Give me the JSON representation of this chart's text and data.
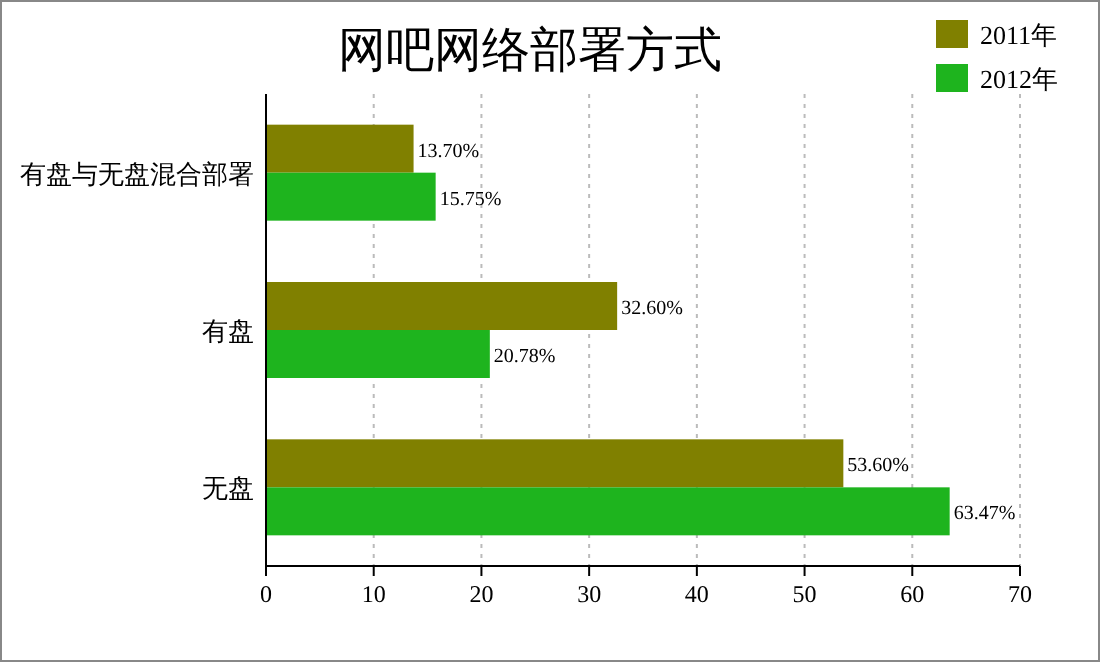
{
  "chart_data": {
    "type": "bar",
    "orientation": "horizontal",
    "title": "网吧网络部署方式",
    "categories": [
      "有盘与无盘混合部署",
      "有盘",
      "无盘"
    ],
    "series": [
      {
        "name": "2011年",
        "color": "#808000",
        "values": [
          13.7,
          32.6,
          53.6
        ],
        "value_labels": [
          "13.70%",
          "32.60%",
          "53.60%"
        ]
      },
      {
        "name": "2012年",
        "color": "#1eb41e",
        "values": [
          15.75,
          20.78,
          63.47
        ],
        "value_labels": [
          "15.75%",
          "20.78%",
          "63.47%"
        ]
      }
    ],
    "xlim": [
      0,
      70
    ],
    "xticks": [
      0,
      10,
      20,
      30,
      40,
      50,
      60,
      70
    ],
    "grid": "x",
    "legend": "top right"
  }
}
